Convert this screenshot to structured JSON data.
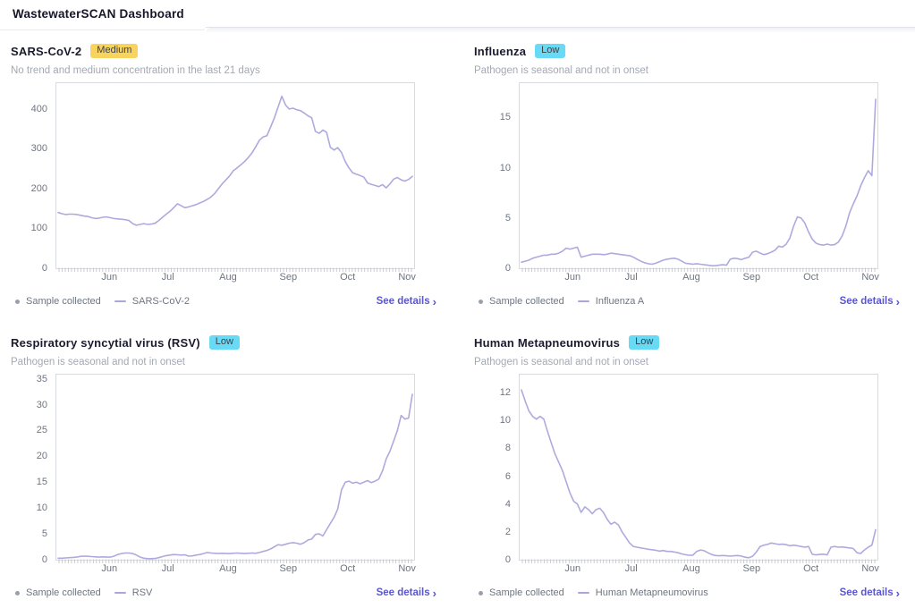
{
  "header": {
    "title": "WastewaterSCAN Dashboard"
  },
  "colors": {
    "accent": "#5a56cf",
    "line": "#aeaade",
    "tick_comb": "#c6c6cc",
    "badge_medium_bg": "#f8d45f",
    "badge_low_bg": "#69daf6",
    "plot_border": "#d9dade",
    "subtitle_gray": "#a3a9b3",
    "axis_gray": "#6e7580"
  },
  "cards": [
    {
      "title": "SARS-CoV-2",
      "badge": {
        "label": "Medium",
        "bg": "#f8d45f"
      },
      "subtitle": "No trend and medium concentration in the last 21 days",
      "legend": {
        "sample_label": "Sample collected",
        "series_label": "SARS-CoV-2"
      },
      "details_label": "See details",
      "details_chevron": "›"
    },
    {
      "title": "Influenza",
      "badge": {
        "label": "Low",
        "bg": "#69daf6"
      },
      "subtitle": "Pathogen is seasonal and not in onset",
      "legend": {
        "sample_label": "Sample collected",
        "series_label": "Influenza A"
      },
      "details_label": "See details",
      "details_chevron": "›"
    },
    {
      "title": "Respiratory syncytial virus (RSV)",
      "badge": {
        "label": "Low",
        "bg": "#69daf6"
      },
      "subtitle": "Pathogen is seasonal and not in onset",
      "legend": {
        "sample_label": "Sample collected",
        "series_label": "RSV"
      },
      "details_label": "See details",
      "details_chevron": "›"
    },
    {
      "title": "Human Metapneumovirus",
      "badge": {
        "label": "Low",
        "bg": "#69daf6"
      },
      "subtitle": "Pathogen is seasonal and not in onset",
      "legend": {
        "sample_label": "Sample collected",
        "series_label": "Human Metapneumovirus"
      },
      "details_label": "See details",
      "details_chevron": "›"
    }
  ],
  "chart_data": [
    {
      "type": "line",
      "series_name": "SARS-CoV-2",
      "x_months": [
        "Jun",
        "Jul",
        "Aug",
        "Sep",
        "Oct",
        "Nov"
      ],
      "month_fractions": [
        0.15,
        0.3125,
        0.48,
        0.6475,
        0.8125,
        0.978
      ],
      "yticks": [
        0,
        100,
        200,
        300,
        400
      ],
      "ymax": 465,
      "line_color": "#aeaade",
      "values": [
        140,
        137,
        135,
        136,
        136,
        135,
        133,
        131,
        130,
        127,
        125,
        126,
        128,
        129,
        127,
        125,
        124,
        123,
        122,
        120,
        112,
        108,
        110,
        112,
        110,
        111,
        113,
        120,
        128,
        136,
        143,
        152,
        162,
        157,
        152,
        154,
        157,
        160,
        164,
        168,
        173,
        179,
        188,
        200,
        212,
        222,
        232,
        245,
        252,
        260,
        268,
        278,
        290,
        305,
        322,
        330,
        333,
        355,
        378,
        405,
        432,
        410,
        400,
        402,
        398,
        396,
        390,
        383,
        378,
        344,
        339,
        347,
        342,
        304,
        297,
        303,
        291,
        268,
        252,
        240,
        236,
        233,
        229,
        214,
        211,
        208,
        205,
        210,
        202,
        212,
        224,
        228,
        222,
        219,
        223,
        231
      ]
    },
    {
      "type": "line",
      "series_name": "Influenza A",
      "x_months": [
        "Jun",
        "Jul",
        "Aug",
        "Sep",
        "Oct",
        "Nov"
      ],
      "month_fractions": [
        0.15,
        0.3125,
        0.48,
        0.6475,
        0.8125,
        0.978
      ],
      "yticks": [
        0,
        5,
        10,
        15
      ],
      "ymax": 18.4,
      "line_color": "#aeaade",
      "values": [
        0.6,
        0.7,
        0.8,
        1.0,
        1.1,
        1.2,
        1.3,
        1.3,
        1.4,
        1.4,
        1.5,
        1.7,
        2.0,
        1.9,
        2.0,
        2.1,
        1.1,
        1.2,
        1.3,
        1.4,
        1.4,
        1.4,
        1.35,
        1.4,
        1.5,
        1.45,
        1.4,
        1.35,
        1.3,
        1.25,
        1.1,
        0.9,
        0.7,
        0.55,
        0.45,
        0.4,
        0.5,
        0.65,
        0.8,
        0.9,
        0.95,
        1.0,
        0.9,
        0.7,
        0.5,
        0.45,
        0.4,
        0.45,
        0.4,
        0.35,
        0.3,
        0.25,
        0.25,
        0.3,
        0.35,
        0.3,
        0.9,
        1.0,
        0.95,
        0.85,
        1.0,
        1.1,
        1.6,
        1.7,
        1.5,
        1.35,
        1.45,
        1.6,
        1.8,
        2.2,
        2.1,
        2.4,
        3.0,
        4.2,
        5.1,
        5.0,
        4.5,
        3.6,
        2.9,
        2.5,
        2.35,
        2.3,
        2.4,
        2.3,
        2.35,
        2.6,
        3.2,
        4.2,
        5.5,
        6.4,
        7.2,
        8.2,
        9.0,
        9.7,
        9.2,
        16.8
      ]
    },
    {
      "type": "line",
      "series_name": "RSV",
      "x_months": [
        "Jun",
        "Jul",
        "Aug",
        "Sep",
        "Oct",
        "Nov"
      ],
      "month_fractions": [
        0.15,
        0.3125,
        0.48,
        0.6475,
        0.8125,
        0.978
      ],
      "yticks": [
        0,
        5,
        10,
        15,
        20,
        25,
        30,
        35
      ],
      "ymax": 35.8,
      "line_color": "#aeaade",
      "values": [
        0.3,
        0.3,
        0.35,
        0.4,
        0.45,
        0.5,
        0.65,
        0.7,
        0.65,
        0.6,
        0.55,
        0.5,
        0.55,
        0.5,
        0.5,
        0.7,
        1.0,
        1.2,
        1.3,
        1.3,
        1.2,
        0.9,
        0.5,
        0.3,
        0.2,
        0.2,
        0.25,
        0.4,
        0.6,
        0.8,
        0.9,
        1.0,
        0.95,
        0.9,
        0.95,
        0.7,
        0.75,
        0.9,
        1.0,
        1.2,
        1.4,
        1.3,
        1.25,
        1.2,
        1.25,
        1.2,
        1.2,
        1.25,
        1.3,
        1.25,
        1.2,
        1.25,
        1.3,
        1.25,
        1.4,
        1.6,
        1.8,
        2.1,
        2.5,
        2.9,
        2.8,
        3.0,
        3.2,
        3.3,
        3.2,
        3.0,
        3.3,
        3.8,
        4.0,
        4.9,
        5.0,
        4.6,
        5.8,
        7.0,
        8.2,
        9.8,
        13.5,
        15.0,
        15.2,
        14.8,
        15.0,
        14.7,
        15.0,
        15.3,
        14.9,
        15.2,
        15.6,
        17.2,
        19.5,
        21.0,
        23.0,
        25.0,
        27.9,
        27.2,
        27.4,
        32.0
      ]
    },
    {
      "type": "line",
      "series_name": "Human Metapneumovirus",
      "x_months": [
        "Jun",
        "Jul",
        "Aug",
        "Sep",
        "Oct",
        "Nov"
      ],
      "month_fractions": [
        0.15,
        0.3125,
        0.48,
        0.6475,
        0.8125,
        0.978
      ],
      "yticks": [
        0,
        2,
        4,
        6,
        8,
        10,
        12
      ],
      "ymax": 13.3,
      "line_color": "#aeaade",
      "values": [
        12.2,
        11.4,
        10.7,
        10.3,
        10.1,
        10.3,
        10.1,
        9.2,
        8.4,
        7.6,
        7.0,
        6.4,
        5.6,
        4.8,
        4.2,
        4.0,
        3.4,
        3.8,
        3.6,
        3.3,
        3.6,
        3.7,
        3.4,
        2.9,
        2.55,
        2.7,
        2.5,
        2.0,
        1.6,
        1.2,
        0.95,
        0.9,
        0.85,
        0.8,
        0.75,
        0.72,
        0.68,
        0.62,
        0.66,
        0.6,
        0.6,
        0.55,
        0.5,
        0.42,
        0.36,
        0.32,
        0.33,
        0.6,
        0.7,
        0.65,
        0.5,
        0.38,
        0.3,
        0.28,
        0.3,
        0.28,
        0.26,
        0.28,
        0.3,
        0.26,
        0.18,
        0.14,
        0.25,
        0.55,
        0.95,
        1.05,
        1.1,
        1.2,
        1.15,
        1.1,
        1.12,
        1.08,
        1.0,
        1.05,
        1.0,
        0.95,
        0.9,
        0.95,
        0.4,
        0.35,
        0.38,
        0.4,
        0.35,
        0.9,
        0.95,
        0.9,
        0.92,
        0.88,
        0.85,
        0.8,
        0.5,
        0.45,
        0.7,
        0.9,
        1.05,
        2.15
      ]
    }
  ]
}
